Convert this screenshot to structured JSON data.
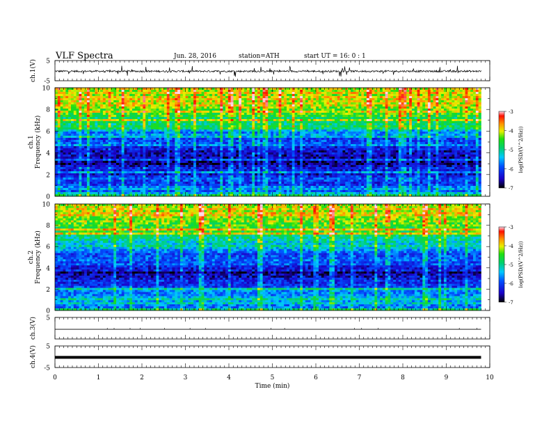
{
  "header": {
    "title": "VLF  Spectra",
    "date": "Jun. 28, 2016",
    "station": "station=ATH",
    "start": "start  UT =   16: 0  : 1"
  },
  "chart_data": [
    {
      "type": "line",
      "title": "VLF  Spectra",
      "ylabel": "ch.1(V)",
      "ylim": [
        -5,
        5
      ],
      "yticks": [
        "5",
        "-5"
      ],
      "xlim": [
        0,
        10
      ],
      "series": [
        {
          "description": "noisy waveform centered near -0.3 V with spikes up to about +/-3 V",
          "x": [
            0,
            9.8
          ],
          "y": [
            -0.3,
            -0.3
          ]
        }
      ]
    },
    {
      "type": "heatmap",
      "ylabel": "ch.1\nFrequency  (kHz)",
      "ylim": [
        0,
        10
      ],
      "yticks": [
        "0",
        "2",
        "4",
        "6",
        "8",
        "10"
      ],
      "xlim": [
        0,
        10
      ],
      "data_end_min": 9.8,
      "colorbar": {
        "label": "log(PSD/(V^2/Hz))",
        "range": [
          -7,
          -3
        ],
        "ticks": [
          "-3",
          "-4",
          "-5",
          "-6",
          "-7"
        ]
      },
      "profile": {
        "freq_khz": [
          0,
          0.5,
          1,
          1.5,
          2,
          2.5,
          3,
          3.5,
          4,
          4.5,
          5,
          5.5,
          6,
          6.5,
          7,
          7.5,
          8,
          8.5,
          9,
          9.5,
          10
        ],
        "log_psd": [
          -5.3,
          -5.8,
          -6.0,
          -6.1,
          -6.2,
          -6.4,
          -6.6,
          -6.7,
          -6.6,
          -6.3,
          -6.1,
          -6.0,
          -5.4,
          -4.9,
          -4.8,
          -4.6,
          -4.4,
          -4.2,
          -4.1,
          -4.0,
          -4.0
        ]
      }
    },
    {
      "type": "heatmap",
      "ylabel": "ch.2\nFrequency  (kHz)",
      "ylim": [
        0,
        10
      ],
      "yticks": [
        "0",
        "2",
        "4",
        "6",
        "8",
        "10"
      ],
      "xlim": [
        0,
        10
      ],
      "data_end_min": 9.8,
      "colorbar": {
        "label": "log(PSD/(V^2/Hz))",
        "range": [
          -7,
          -3
        ],
        "ticks": [
          "-3",
          "-4",
          "-5",
          "-6",
          "-7"
        ]
      },
      "profile": {
        "freq_khz": [
          0,
          0.5,
          1,
          1.5,
          2,
          2.5,
          3,
          3.5,
          4,
          4.5,
          5,
          5.5,
          6,
          6.5,
          7,
          7.5,
          8,
          8.5,
          9,
          9.5,
          10
        ],
        "log_psd": [
          -5.4,
          -5.6,
          -5.2,
          -5.6,
          -5.8,
          -6.0,
          -6.3,
          -6.7,
          -6.2,
          -6.0,
          -5.9,
          -5.8,
          -5.3,
          -5.0,
          -4.8,
          -4.6,
          -4.4,
          -4.2,
          -4.1,
          -4.0,
          -4.0
        ]
      }
    },
    {
      "type": "line",
      "ylabel": "ch.3(V)",
      "ylim": [
        -5,
        5
      ],
      "yticks": [
        "5"
      ],
      "xlim": [
        0,
        10
      ],
      "series": [
        {
          "description": "nearly constant line near -0.5 V",
          "x": [
            0,
            9.8
          ],
          "y": [
            -0.5,
            -0.5
          ]
        }
      ]
    },
    {
      "type": "line",
      "ylabel": "ch.4(V)",
      "ylim": [
        -5,
        5
      ],
      "yticks": [
        "5",
        "-5"
      ],
      "xlim": [
        0,
        10
      ],
      "xlabel": "Time  (min)",
      "xticks": [
        "0",
        "1",
        "2",
        "3",
        "4",
        "5",
        "6",
        "7",
        "8",
        "9",
        "10"
      ],
      "series": [
        {
          "description": "thick flat line near -0.3 V",
          "x": [
            0,
            9.8
          ],
          "y": [
            -0.3,
            -0.3
          ]
        }
      ]
    }
  ]
}
